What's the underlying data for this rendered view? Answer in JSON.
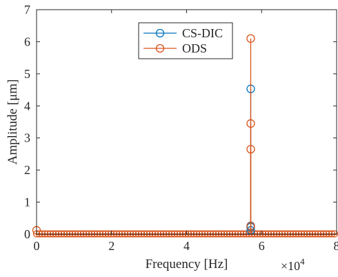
{
  "chart_data": {
    "type": "stem",
    "xlabel": "Frequency [Hz]",
    "ylabel": "Amplitude [μm]",
    "x_multiplier": "×10",
    "x_multiplier_exponent": "4",
    "xlim": [
      0,
      80000
    ],
    "ylim": [
      0,
      7
    ],
    "xticks": [
      0,
      20000,
      40000,
      60000,
      80000
    ],
    "xtick_labels": [
      "0",
      "2",
      "4",
      "6",
      "8"
    ],
    "yticks": [
      0,
      1,
      2,
      3,
      4,
      5,
      6,
      7
    ],
    "ytick_labels": [
      "0",
      "1",
      "2",
      "3",
      "4",
      "5",
      "6",
      "7"
    ],
    "grid": false,
    "legend_position": "top-center",
    "series": [
      {
        "name": "CS-DIC",
        "color": "#0072BD",
        "points": [
          {
            "x": 57100,
            "y": 4.53
          },
          {
            "x": 57100,
            "y": 0.26
          },
          {
            "x": 57100,
            "y": 0.22
          },
          {
            "x": 57100,
            "y": 0.12
          }
        ]
      },
      {
        "name": "ODS",
        "color": "#D95319",
        "points": [
          {
            "x": 0,
            "y": 0.12
          },
          {
            "x": 57100,
            "y": 6.1
          },
          {
            "x": 57100,
            "y": 3.45
          },
          {
            "x": 57100,
            "y": 2.65
          },
          {
            "x": 57100,
            "y": 0.25
          }
        ]
      }
    ]
  }
}
